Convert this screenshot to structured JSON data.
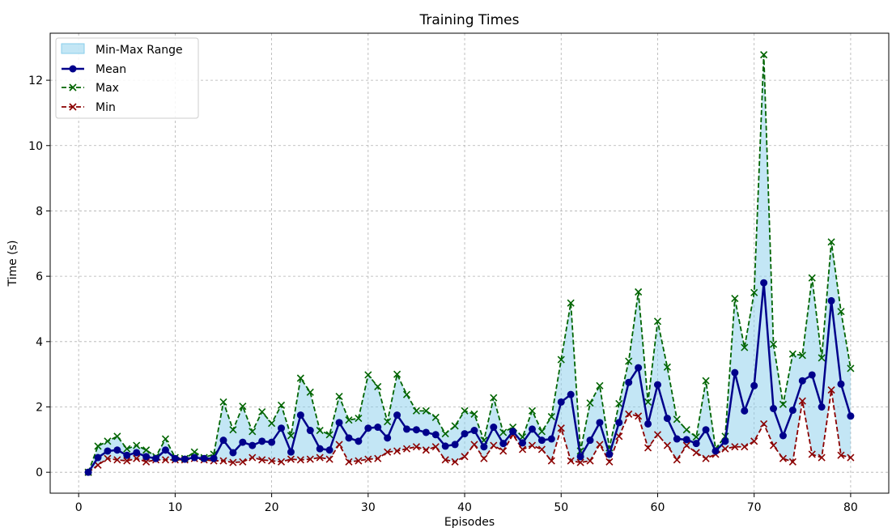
{
  "chart_data": {
    "type": "line",
    "title": "Training Times",
    "xlabel": "Episodes",
    "ylabel": "Time (s)",
    "xlim": [
      -2.95,
      83.95
    ],
    "ylim": [
      -0.64,
      13.44
    ],
    "xticks": [
      0,
      10,
      20,
      30,
      40,
      50,
      60,
      70,
      80
    ],
    "yticks": [
      0,
      2,
      4,
      6,
      8,
      10,
      12
    ],
    "grid": true,
    "legend_position": "top-left",
    "x": [
      1,
      2,
      3,
      4,
      5,
      6,
      7,
      8,
      9,
      10,
      11,
      12,
      13,
      14,
      15,
      16,
      17,
      18,
      19,
      20,
      21,
      22,
      23,
      24,
      25,
      26,
      27,
      28,
      29,
      30,
      31,
      32,
      33,
      34,
      35,
      36,
      37,
      38,
      39,
      40,
      41,
      42,
      43,
      44,
      45,
      46,
      47,
      48,
      49,
      50,
      51,
      52,
      53,
      54,
      55,
      56,
      57,
      58,
      59,
      60,
      61,
      62,
      63,
      64,
      65,
      66,
      67,
      68,
      69,
      70,
      71,
      72,
      73,
      74,
      75,
      76,
      77,
      78,
      79,
      80
    ],
    "series": [
      {
        "name": "Min-Max Range",
        "kind": "fill",
        "color": "#87ceeb"
      },
      {
        "name": "Mean",
        "kind": "line-marker-o",
        "color": "#00008b",
        "values": [
          0.0,
          0.45,
          0.65,
          0.68,
          0.52,
          0.6,
          0.48,
          0.42,
          0.68,
          0.42,
          0.4,
          0.45,
          0.42,
          0.42,
          0.98,
          0.6,
          0.92,
          0.82,
          0.95,
          0.92,
          1.35,
          0.62,
          1.75,
          1.28,
          0.72,
          0.68,
          1.52,
          1.05,
          0.95,
          1.35,
          1.38,
          1.05,
          1.75,
          1.32,
          1.3,
          1.22,
          1.15,
          0.8,
          0.85,
          1.18,
          1.28,
          0.78,
          1.38,
          0.88,
          1.25,
          0.9,
          1.32,
          0.98,
          1.02,
          2.15,
          2.38,
          0.48,
          0.98,
          1.52,
          0.55,
          1.52,
          2.75,
          3.2,
          1.48,
          2.68,
          1.65,
          1.02,
          1.0,
          0.88,
          1.3,
          0.65,
          0.95,
          3.05,
          1.88,
          2.65,
          5.8,
          1.95,
          1.12,
          1.9,
          2.8,
          2.98,
          2.0,
          5.25,
          2.7,
          1.72
        ]
      },
      {
        "name": "Max",
        "kind": "dashed-marker-x",
        "color": "#006400",
        "values": [
          0.0,
          0.8,
          0.95,
          1.1,
          0.72,
          0.82,
          0.68,
          0.48,
          1.02,
          0.45,
          0.42,
          0.62,
          0.45,
          0.55,
          2.15,
          1.3,
          2.02,
          1.25,
          1.85,
          1.5,
          2.05,
          1.12,
          2.88,
          2.45,
          1.28,
          1.15,
          2.32,
          1.6,
          1.65,
          2.98,
          2.62,
          1.55,
          3.0,
          2.38,
          1.88,
          1.88,
          1.68,
          1.18,
          1.42,
          1.88,
          1.78,
          0.98,
          2.28,
          1.22,
          1.38,
          1.08,
          1.88,
          1.25,
          1.7,
          3.45,
          5.18,
          0.65,
          2.12,
          2.65,
          0.75,
          2.1,
          3.4,
          5.52,
          2.15,
          4.62,
          3.22,
          1.62,
          1.3,
          1.08,
          2.8,
          0.72,
          1.1,
          5.32,
          3.82,
          5.5,
          12.78,
          3.92,
          2.08,
          3.62,
          3.58,
          5.95,
          3.5,
          7.05,
          4.92,
          3.18
        ]
      },
      {
        "name": "Min",
        "kind": "dashed-marker-x",
        "color": "#8b0000",
        "values": [
          0.0,
          0.22,
          0.42,
          0.38,
          0.35,
          0.42,
          0.32,
          0.38,
          0.38,
          0.38,
          0.38,
          0.42,
          0.38,
          0.35,
          0.35,
          0.3,
          0.32,
          0.45,
          0.38,
          0.35,
          0.32,
          0.4,
          0.38,
          0.4,
          0.45,
          0.4,
          0.85,
          0.32,
          0.35,
          0.4,
          0.42,
          0.62,
          0.65,
          0.72,
          0.78,
          0.68,
          0.78,
          0.38,
          0.32,
          0.48,
          0.85,
          0.42,
          0.82,
          0.65,
          1.15,
          0.7,
          0.82,
          0.7,
          0.35,
          1.35,
          0.35,
          0.3,
          0.35,
          0.85,
          0.32,
          1.1,
          1.78,
          1.72,
          0.75,
          1.15,
          0.82,
          0.38,
          0.82,
          0.6,
          0.42,
          0.55,
          0.72,
          0.78,
          0.78,
          0.95,
          1.48,
          0.82,
          0.42,
          0.32,
          2.18,
          0.55,
          0.45,
          2.52,
          0.52,
          0.45
        ]
      }
    ]
  }
}
